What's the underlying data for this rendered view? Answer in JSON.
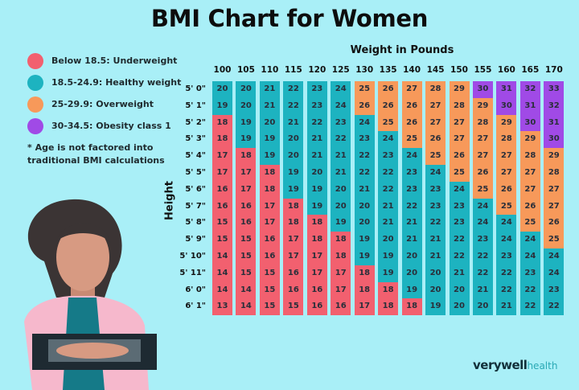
{
  "chart_data": {
    "type": "heatmap",
    "title": "BMI Chart for Women",
    "xlabel": "Weight in Pounds",
    "ylabel": "Height",
    "x": [
      100,
      105,
      110,
      115,
      120,
      125,
      130,
      135,
      140,
      145,
      150,
      155,
      160,
      165,
      170
    ],
    "y": [
      "5' 0\"",
      "5' 1\"",
      "5' 2\"",
      "5' 3\"",
      "5' 4\"",
      "5' 5\"",
      "5' 6\"",
      "5' 7\"",
      "5' 8\"",
      "5' 9\"",
      "5' 10\"",
      "5' 11\"",
      "6' 0\"",
      "6' 1\""
    ],
    "values_by_weight": [
      [
        20,
        19,
        18,
        18,
        17,
        17,
        16,
        16,
        15,
        15,
        14,
        14,
        14,
        13
      ],
      [
        20,
        20,
        19,
        19,
        18,
        17,
        17,
        16,
        16,
        15,
        15,
        15,
        14,
        14
      ],
      [
        21,
        21,
        20,
        19,
        19,
        18,
        18,
        17,
        17,
        16,
        16,
        15,
        15,
        15
      ],
      [
        22,
        22,
        21,
        20,
        20,
        19,
        19,
        18,
        18,
        17,
        17,
        16,
        16,
        15
      ],
      [
        23,
        23,
        22,
        21,
        21,
        20,
        19,
        19,
        18,
        18,
        17,
        17,
        16,
        16
      ],
      [
        24,
        24,
        23,
        22,
        21,
        21,
        20,
        20,
        19,
        18,
        18,
        17,
        17,
        16
      ],
      [
        25,
        26,
        24,
        23,
        22,
        22,
        21,
        20,
        20,
        19,
        19,
        18,
        18,
        17
      ],
      [
        26,
        26,
        25,
        24,
        23,
        22,
        22,
        21,
        21,
        20,
        19,
        19,
        18,
        18
      ],
      [
        27,
        26,
        26,
        25,
        24,
        23,
        23,
        22,
        21,
        21,
        20,
        20,
        19,
        18
      ],
      [
        28,
        27,
        27,
        26,
        25,
        24,
        23,
        23,
        22,
        21,
        21,
        20,
        20,
        19
      ],
      [
        29,
        28,
        27,
        27,
        26,
        25,
        24,
        23,
        23,
        22,
        22,
        21,
        20,
        20
      ],
      [
        30,
        29,
        28,
        27,
        27,
        26,
        25,
        24,
        24,
        23,
        22,
        22,
        21,
        20
      ],
      [
        31,
        30,
        29,
        28,
        27,
        27,
        26,
        25,
        24,
        24,
        23,
        22,
        22,
        21
      ],
      [
        32,
        31,
        30,
        29,
        28,
        27,
        27,
        26,
        25,
        24,
        24,
        23,
        22,
        22
      ],
      [
        33,
        32,
        31,
        30,
        29,
        28,
        27,
        27,
        26,
        25,
        24,
        24,
        23,
        22
      ]
    ],
    "legend": [
      {
        "label": "Below 18.5: Underweight",
        "color": "#f2606f",
        "max": 18.5
      },
      {
        "label": "18.5-24.9: Healthy weight",
        "color": "#1db3c0",
        "max": 25
      },
      {
        "label": "25-29.9: Overweight",
        "color": "#f7995a",
        "max": 30
      },
      {
        "label": "30-34.5: Obesity class 1",
        "color": "#a04ae6",
        "max": 99
      }
    ],
    "legend_placement": "left",
    "note": "* Age is not factored into traditional BMI calculations"
  },
  "brand": {
    "main": "verywell",
    "sub": "health"
  }
}
